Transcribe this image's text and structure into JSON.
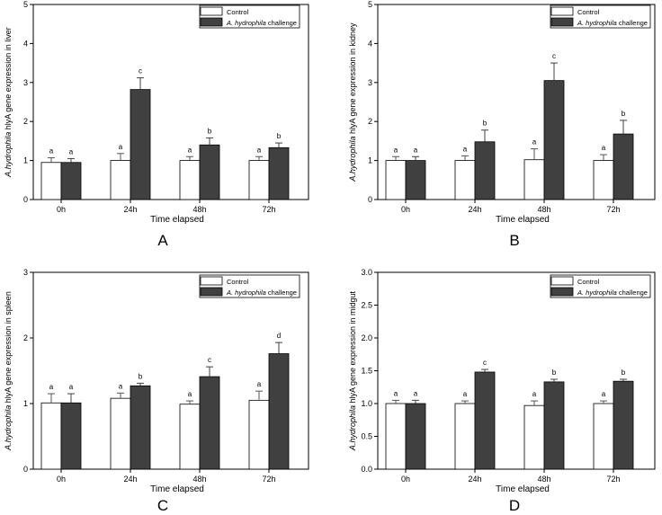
{
  "legend": {
    "control_label": "Control",
    "challenge_label_italic": "A. hydrophila",
    "challenge_label_rest": " challenge"
  },
  "colors": {
    "control": "#ffffff",
    "challenge": "#404040",
    "axis": "#000000"
  },
  "chart_data": [
    {
      "type": "bar",
      "panel_letter": "A",
      "xlabel": "Time elapsed",
      "ylabel_italic": "A.hydrophila",
      "ylabel_rest": " hlyA gene  expression in liver",
      "categories": [
        "0h",
        "24h",
        "48h",
        "72h"
      ],
      "ylim": [
        0,
        5
      ],
      "yticks": [
        0,
        1,
        2,
        3,
        4,
        5
      ],
      "ytick_labels": [
        "0",
        "1",
        "2",
        "3",
        "4",
        "5"
      ],
      "series": [
        {
          "name": "Control",
          "values": [
            0.95,
            1.0,
            1.0,
            1.0
          ],
          "errors": [
            0.12,
            0.18,
            0.1,
            0.1
          ],
          "letters": [
            "a",
            "a",
            "a",
            "a"
          ]
        },
        {
          "name": "A. hydrophila challenge",
          "values": [
            0.95,
            2.82,
            1.4,
            1.33
          ],
          "errors": [
            0.1,
            0.3,
            0.18,
            0.12
          ],
          "letters": [
            "a",
            "c",
            "b",
            "b"
          ]
        }
      ]
    },
    {
      "type": "bar",
      "panel_letter": "B",
      "xlabel": "Time elapsed",
      "ylabel_italic": "A.hydrophila",
      "ylabel_rest": " hlyA gene  expression in kidney",
      "categories": [
        "0h",
        "24h",
        "48h",
        "72h"
      ],
      "ylim": [
        0,
        5
      ],
      "yticks": [
        0,
        1,
        2,
        3,
        4,
        5
      ],
      "ytick_labels": [
        "0",
        "1",
        "2",
        "3",
        "4",
        "5"
      ],
      "series": [
        {
          "name": "Control",
          "values": [
            1.0,
            1.0,
            1.02,
            1.0
          ],
          "errors": [
            0.1,
            0.12,
            0.28,
            0.15
          ],
          "letters": [
            "a",
            "a",
            "a",
            "a"
          ]
        },
        {
          "name": "A. hydrophila challenge",
          "values": [
            1.0,
            1.48,
            3.05,
            1.68
          ],
          "errors": [
            0.1,
            0.3,
            0.45,
            0.35
          ],
          "letters": [
            "a",
            "b",
            "c",
            "b"
          ]
        }
      ]
    },
    {
      "type": "bar",
      "panel_letter": "C",
      "xlabel": "Time elapsed",
      "ylabel_italic": "A.hydrophila",
      "ylabel_rest": " hlyA gene  expression in spleen",
      "categories": [
        "0h",
        "24h",
        "48h",
        "72h"
      ],
      "ylim": [
        0,
        3
      ],
      "yticks": [
        0,
        1,
        2,
        3
      ],
      "ytick_labels": [
        "0",
        "1",
        "2",
        "3"
      ],
      "series": [
        {
          "name": "Control",
          "values": [
            1.01,
            1.08,
            0.99,
            1.05
          ],
          "errors": [
            0.14,
            0.08,
            0.05,
            0.14
          ],
          "letters": [
            "a",
            "a",
            "a",
            "a"
          ]
        },
        {
          "name": "A. hydrophila challenge",
          "values": [
            1.01,
            1.27,
            1.41,
            1.76
          ],
          "errors": [
            0.14,
            0.04,
            0.15,
            0.17
          ],
          "letters": [
            "a",
            "b",
            "c",
            "d"
          ]
        }
      ]
    },
    {
      "type": "bar",
      "panel_letter": "D",
      "xlabel": "Time elapsed",
      "ylabel_italic": "A.hydrophila",
      "ylabel_rest": " hlyA gene  expression in midgut",
      "categories": [
        "0h",
        "24h",
        "48h",
        "72h"
      ],
      "ylim": [
        0,
        3
      ],
      "yticks": [
        0,
        0.5,
        1,
        1.5,
        2,
        2.5,
        3
      ],
      "ytick_labels": [
        "0.0",
        "0.5",
        "1.0",
        "1.5",
        "2.0",
        "2.5",
        "3.0"
      ],
      "series": [
        {
          "name": "Control",
          "values": [
            1.0,
            1.0,
            0.97,
            1.0
          ],
          "errors": [
            0.05,
            0.04,
            0.07,
            0.04
          ],
          "letters": [
            "a",
            "a",
            "a",
            "a"
          ]
        },
        {
          "name": "A. hydrophila challenge",
          "values": [
            1.0,
            1.48,
            1.33,
            1.34
          ],
          "errors": [
            0.05,
            0.04,
            0.04,
            0.03
          ],
          "letters": [
            "a",
            "c",
            "b",
            "b"
          ]
        }
      ]
    }
  ]
}
